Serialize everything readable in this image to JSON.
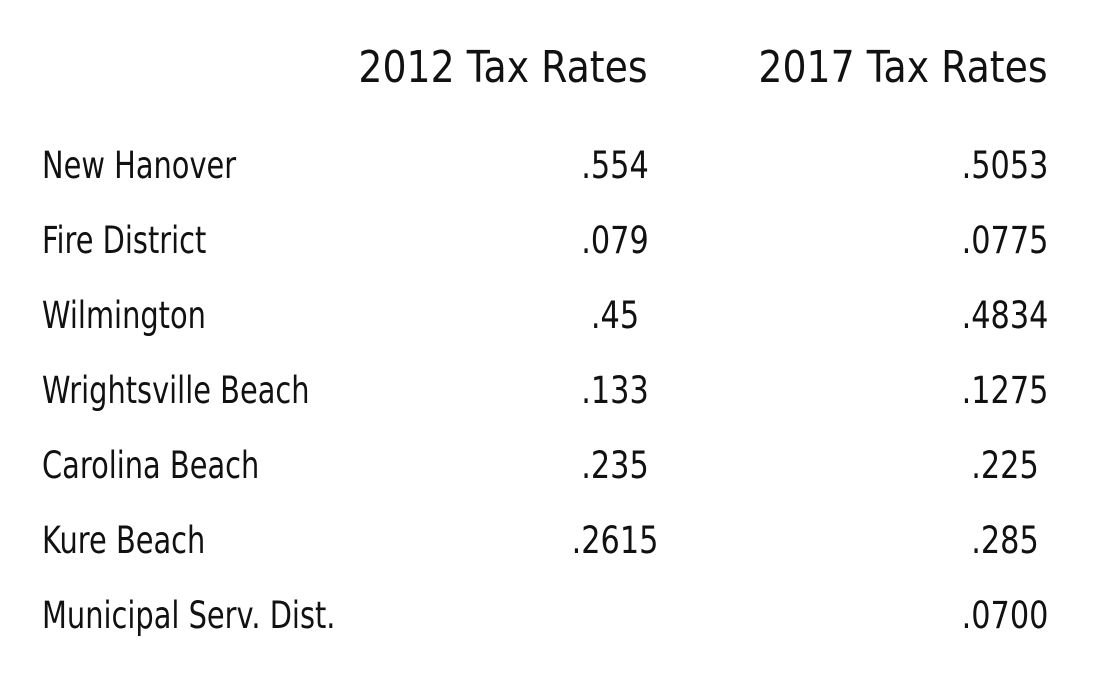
{
  "table": {
    "header": [
      "2012 Tax Rates",
      "2017 Tax Rates"
    ],
    "rows": [
      [
        "New Hanover",
        ".554",
        ".5053"
      ],
      [
        "Fire District",
        ".079",
        ".0775"
      ],
      [
        "Wilmington",
        ".45",
        ".4834"
      ],
      [
        "Wrightsville Beach",
        ".133",
        ".1275"
      ],
      [
        "Carolina Beach",
        ".235",
        ".225"
      ],
      [
        "Kure Beach",
        ".2615",
        ".285"
      ],
      [
        "Municipal Serv. Dist.",
        null,
        ".0700"
      ]
    ]
  }
}
